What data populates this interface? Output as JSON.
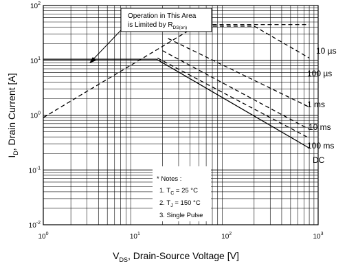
{
  "chart_data": {
    "type": "line",
    "xlabel": {
      "main": "V",
      "sub": "DS",
      "rest": ", Drain-Source Voltage [V]"
    },
    "ylabel": {
      "main": "I",
      "sub": "D",
      "rest": ", Drain Current [A]"
    },
    "x_scale": "log",
    "y_scale": "log",
    "xlim": [
      1,
      1000
    ],
    "ylim": [
      0.01,
      100
    ],
    "grid": true,
    "x_ticks": [
      {
        "base": "10",
        "exp": "0",
        "value": 1
      },
      {
        "base": "10",
        "exp": "1",
        "value": 10
      },
      {
        "base": "10",
        "exp": "2",
        "value": 100
      },
      {
        "base": "10",
        "exp": "3",
        "value": 1000
      }
    ],
    "y_ticks": [
      {
        "base": "10",
        "exp": "-2",
        "value": 0.01
      },
      {
        "base": "10",
        "exp": "-1",
        "value": 0.1
      },
      {
        "base": "10",
        "exp": "0",
        "value": 1
      },
      {
        "base": "10",
        "exp": "1",
        "value": 10
      },
      {
        "base": "10",
        "exp": "2",
        "value": 100
      }
    ],
    "annotation": {
      "line1": "Operation in This Area",
      "line2_main": "is Limited by R",
      "line2_sub": "DS(on)"
    },
    "rdson_line": [
      [
        1,
        0.9
      ],
      [
        3.2,
        2.9
      ],
      [
        10,
        9.0
      ],
      [
        16.8,
        15.1
      ],
      [
        30,
        27
      ],
      [
        50,
        45
      ]
    ],
    "series": [
      {
        "name": "10 µs",
        "dash": true,
        "points": [
          [
            50,
            45
          ],
          [
            800,
            45
          ]
        ]
      },
      {
        "name": "100 µs",
        "dash": true,
        "points": [
          [
            30,
            42
          ],
          [
            200,
            42
          ],
          [
            800,
            11
          ]
        ]
      },
      {
        "name": "1 ms",
        "dash": true,
        "points": [
          [
            23,
            25
          ],
          [
            800,
            1.4
          ]
        ]
      },
      {
        "name": "10 ms",
        "dash": true,
        "points": [
          [
            20,
            15
          ],
          [
            800,
            0.55
          ]
        ]
      },
      {
        "name": "100 ms",
        "dash": true,
        "points": [
          [
            17.6,
            11
          ],
          [
            800,
            0.38
          ]
        ]
      },
      {
        "name": "DC",
        "dash": false,
        "points": [
          [
            1,
            10.5
          ],
          [
            17.2,
            10.5
          ],
          [
            800,
            0.25
          ]
        ]
      }
    ],
    "notes": {
      "title": "* Notes :",
      "n1_pre": "1. T",
      "n1_sub": "C",
      "n1_post": " = 25 °C",
      "n2_pre": "2. T",
      "n2_sub": "J",
      "n2_post": " = 150 °C",
      "n3": "3. Single Pulse"
    }
  }
}
